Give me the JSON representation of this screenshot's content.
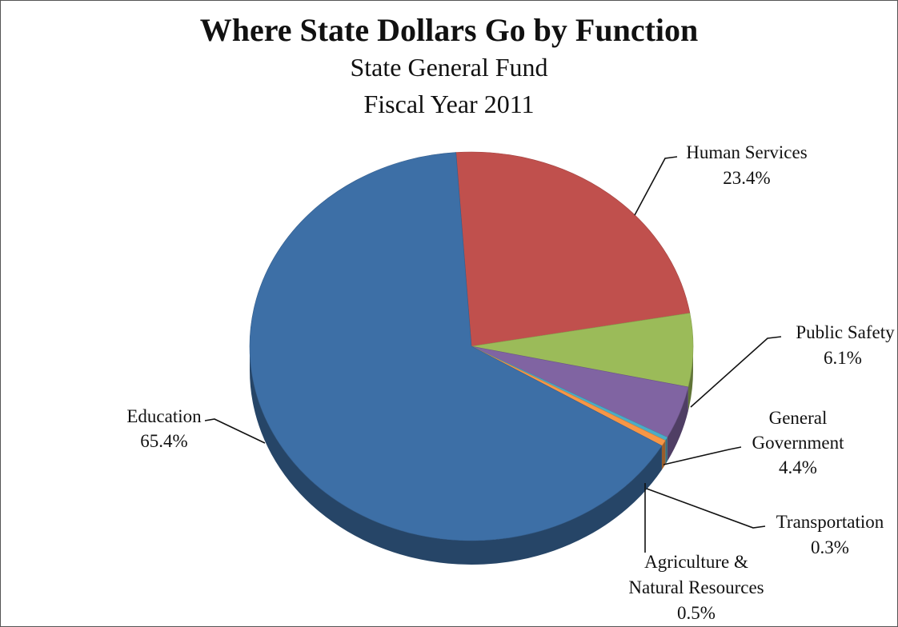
{
  "chart_data": {
    "type": "pie",
    "title": "Where State Dollars Go by Function",
    "subtitle": [
      "State General Fund",
      "Fiscal Year 2011"
    ],
    "slices": [
      {
        "name": "Education",
        "value": 65.4,
        "label": "65.4%",
        "color": "#3d6fa6"
      },
      {
        "name": "Human Services",
        "value": 23.4,
        "label": "23.4%",
        "color": "#c0504d"
      },
      {
        "name": "Public Safety",
        "value": 6.1,
        "label": "6.1%",
        "color": "#9bbb59"
      },
      {
        "name": "General Government",
        "value": 4.4,
        "label": "4.4%",
        "color": "#8064a2"
      },
      {
        "name": "Transportation",
        "value": 0.3,
        "label": "0.3%",
        "color": "#4bacc6"
      },
      {
        "name": "Agriculture & Natural Resources",
        "value": 0.5,
        "label": "0.5%",
        "color": "#f79646"
      }
    ]
  }
}
